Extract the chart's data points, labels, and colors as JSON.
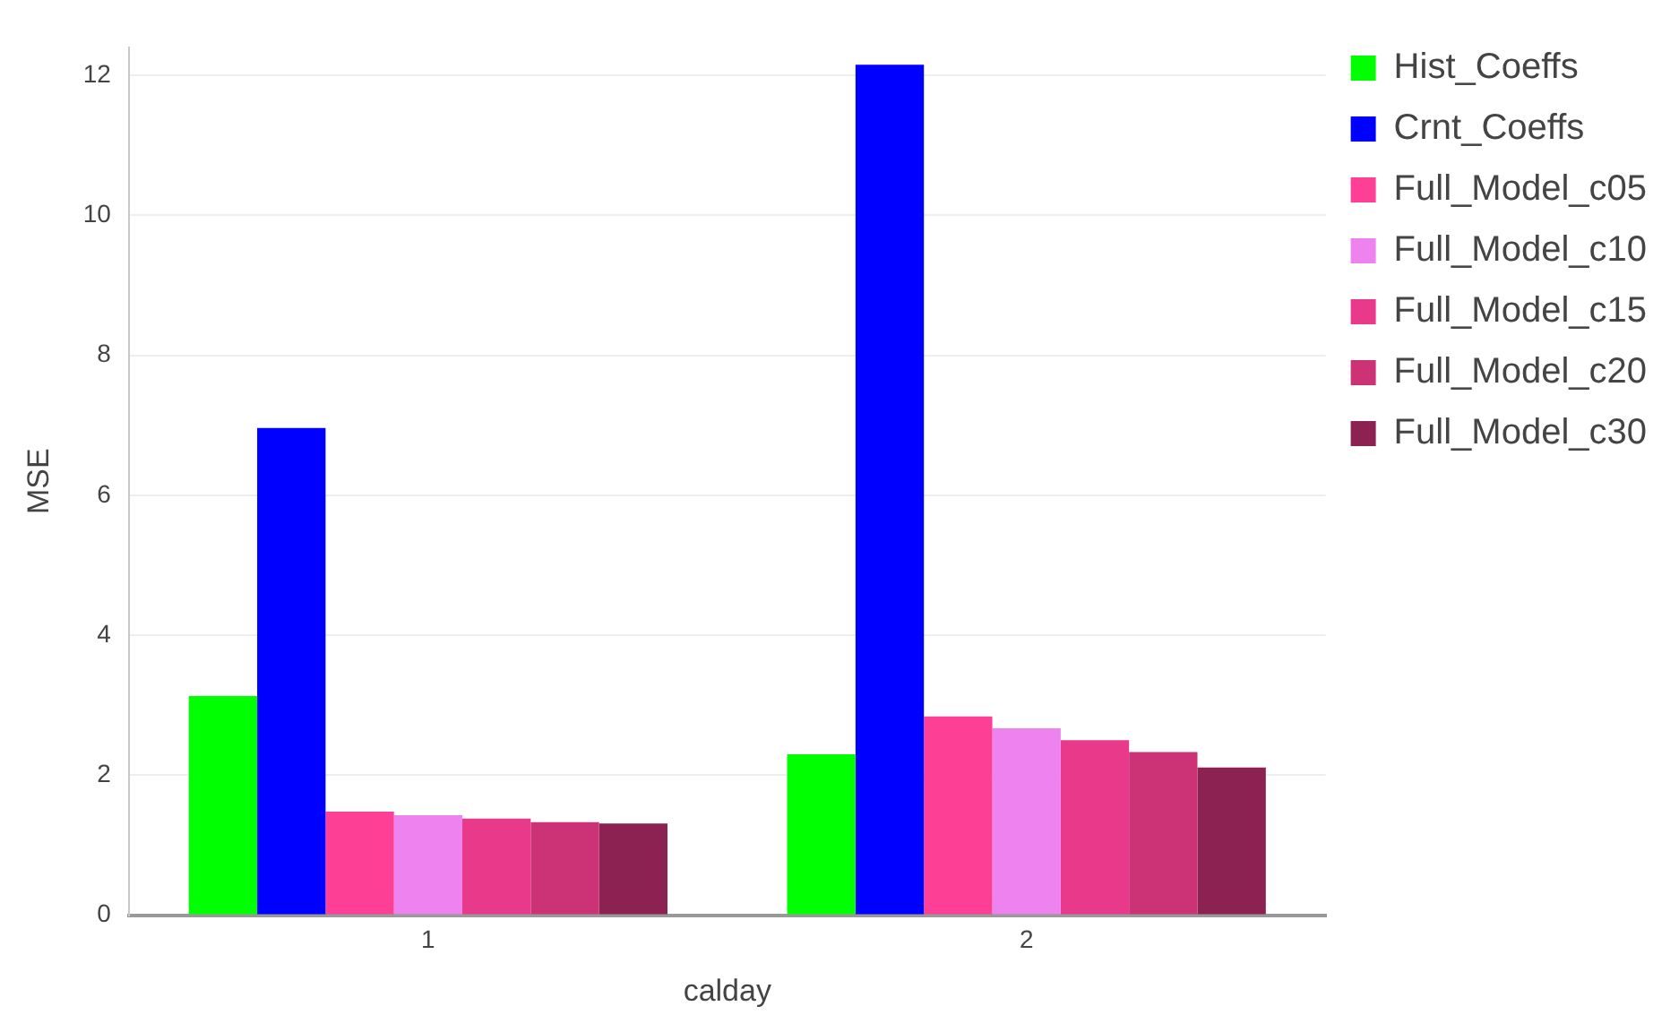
{
  "chart_data": {
    "type": "bar",
    "xlabel": "calday",
    "ylabel": "MSE",
    "categories": [
      "1",
      "2"
    ],
    "series": [
      {
        "name": "Hist_Coeffs",
        "color": "#00ff00",
        "values": [
          3.13,
          2.3
        ]
      },
      {
        "name": "Crnt_Coeffs",
        "color": "#0000ff",
        "values": [
          6.96,
          12.15
        ]
      },
      {
        "name": "Full_Model_c05",
        "color": "#fe3f96",
        "values": [
          1.48,
          2.84
        ]
      },
      {
        "name": "Full_Model_c10",
        "color": "#ee82ee",
        "values": [
          1.43,
          2.67
        ]
      },
      {
        "name": "Full_Model_c15",
        "color": "#e8398a",
        "values": [
          1.38,
          2.5
        ]
      },
      {
        "name": "Full_Model_c20",
        "color": "#cc3377",
        "values": [
          1.33,
          2.33
        ]
      },
      {
        "name": "Full_Model_c30",
        "color": "#8b2252",
        "values": [
          1.31,
          2.11
        ]
      }
    ],
    "ylim": [
      0,
      12.4
    ],
    "yticks": [
      0,
      2,
      4,
      6,
      8,
      10,
      12
    ],
    "grid": "y",
    "legend": "top right"
  }
}
